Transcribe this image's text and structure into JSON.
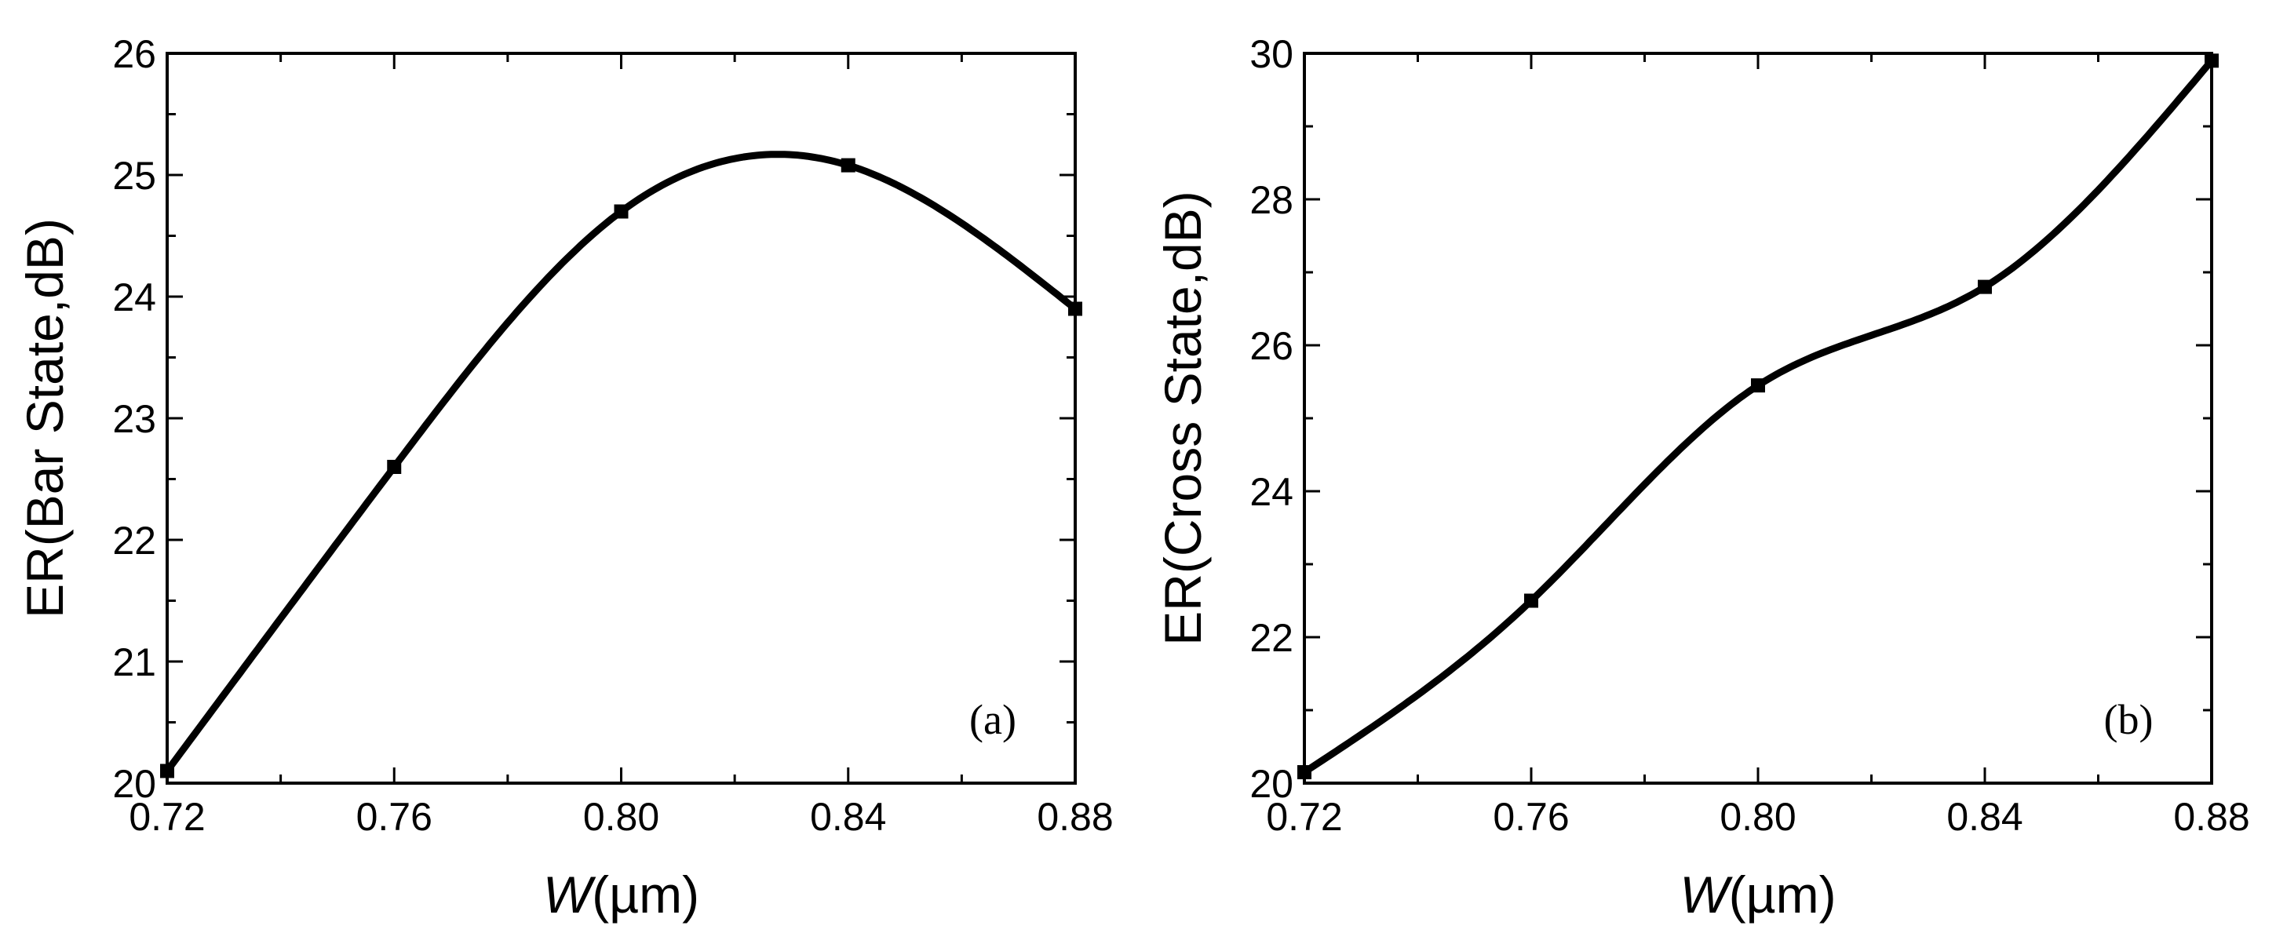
{
  "chart_data": [
    {
      "type": "line",
      "panel_label": "(a)",
      "xlabel_italic": "W",
      "xlabel_unit": "(µm)",
      "ylabel": "ER(Bar State,dB)",
      "xlim": [
        0.72,
        0.88
      ],
      "ylim": [
        20,
        26
      ],
      "x_ticks": [
        "0.72",
        "0.76",
        "0.80",
        "0.84",
        "0.88"
      ],
      "y_ticks": [
        "20",
        "21",
        "22",
        "23",
        "24",
        "25",
        "26"
      ],
      "x_tick_values": [
        0.72,
        0.76,
        0.8,
        0.84,
        0.88
      ],
      "y_tick_values": [
        20,
        21,
        22,
        23,
        24,
        25,
        26
      ],
      "series": [
        {
          "x": [
            0.72,
            0.76,
            0.8,
            0.84,
            0.88
          ],
          "y": [
            20.1,
            22.6,
            24.7,
            25.08,
            23.9
          ]
        }
      ],
      "grid": false,
      "color": "#000000"
    },
    {
      "type": "line",
      "panel_label": "(b)",
      "xlabel_italic": "W",
      "xlabel_unit": "(µm)",
      "ylabel": "ER(Cross State,dB)",
      "xlim": [
        0.72,
        0.88
      ],
      "ylim": [
        20,
        30
      ],
      "x_ticks": [
        "0.72",
        "0.76",
        "0.80",
        "0.84",
        "0.88"
      ],
      "y_ticks": [
        "20",
        "22",
        "24",
        "26",
        "28",
        "30"
      ],
      "x_tick_values": [
        0.72,
        0.76,
        0.8,
        0.84,
        0.88
      ],
      "y_tick_values": [
        20,
        22,
        24,
        26,
        28,
        30
      ],
      "series": [
        {
          "x": [
            0.72,
            0.76,
            0.8,
            0.84,
            0.88
          ],
          "y": [
            20.15,
            22.5,
            25.45,
            26.8,
            29.9
          ]
        }
      ],
      "grid": false,
      "color": "#000000"
    }
  ]
}
